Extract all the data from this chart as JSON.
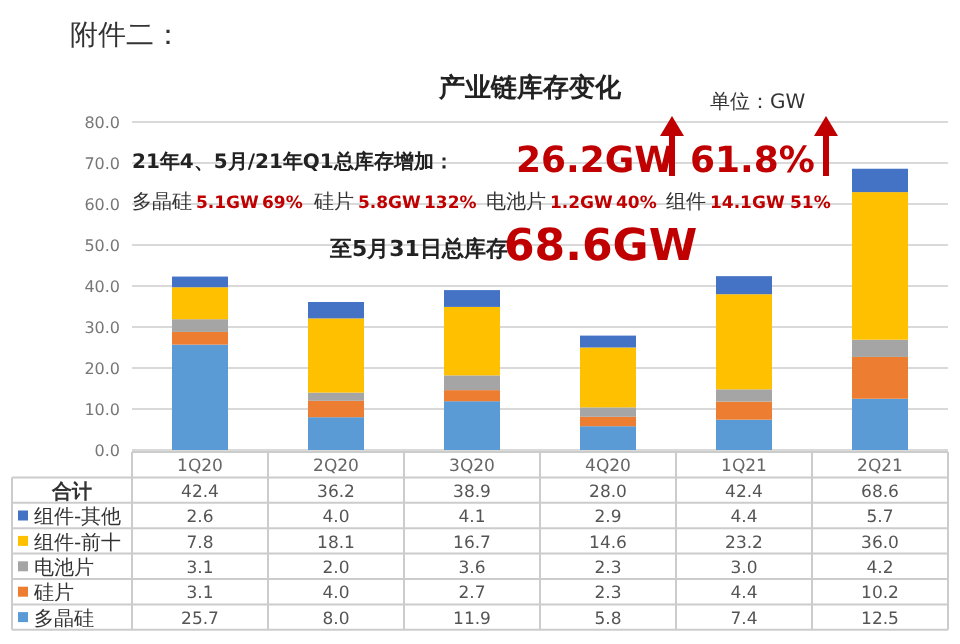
{
  "chart_data": {
    "type": "bar",
    "title": "产业链库存变化",
    "stacked": true,
    "grid": "y",
    "legend": "bottom",
    "categories": [
      "1Q20",
      "2Q20",
      "3Q20",
      "4Q20",
      "1Q21",
      "2Q21"
    ],
    "series": [
      {
        "name": "多晶硅",
        "color": "#5b9bd5",
        "values": [
          25.7,
          8.0,
          11.9,
          5.8,
          7.4,
          12.5
        ],
        "value_labels": [
          "25.7",
          "8.0",
          "11.9",
          "5.8",
          "7.4",
          "12.5"
        ]
      },
      {
        "name": "硅片",
        "color": "#ed7d31",
        "values": [
          3.1,
          4.0,
          2.7,
          2.3,
          4.4,
          10.2
        ],
        "value_labels": [
          "3.1",
          "4.0",
          "2.7",
          "2.3",
          "4.4",
          "10.2"
        ]
      },
      {
        "name": "电池片",
        "color": "#a5a5a5",
        "values": [
          3.1,
          2.0,
          3.6,
          2.3,
          3.0,
          4.2
        ],
        "value_labels": [
          "3.1",
          "2.0",
          "3.6",
          "2.3",
          "3.0",
          "4.2"
        ]
      },
      {
        "name": "组件-前十",
        "color": "#ffc000",
        "values": [
          7.8,
          18.1,
          16.7,
          14.6,
          23.2,
          36.0
        ],
        "value_labels": [
          "7.8",
          "18.1",
          "16.7",
          "14.6",
          "23.2",
          "36.0"
        ]
      },
      {
        "name": "组件-其他",
        "color": "#4472c4",
        "values": [
          2.6,
          4.0,
          4.1,
          2.9,
          4.4,
          5.7
        ],
        "value_labels": [
          "2.6",
          "4.0",
          "4.1",
          "2.9",
          "4.4",
          "5.7"
        ]
      }
    ],
    "totals": [
      "42.4",
      "36.2",
      "38.9",
      "28.0",
      "42.4",
      "68.6"
    ],
    "ylim": [
      0,
      80
    ],
    "yticks": [
      {
        "value": 0,
        "label": "0.0"
      },
      {
        "value": 10,
        "label": "10.0"
      },
      {
        "value": 20,
        "label": "20.0"
      },
      {
        "value": 30,
        "label": "30.0"
      },
      {
        "value": 40,
        "label": "40.0"
      },
      {
        "value": 50,
        "label": "50.0"
      },
      {
        "value": 60,
        "label": "60.0"
      },
      {
        "value": 70,
        "label": "70.0"
      },
      {
        "value": 80,
        "label": "80.0"
      }
    ],
    "annotations": [
      "附件二：",
      "单位：GW",
      "21年4、5月/21年Q1总库存增加：",
      "26.2GW",
      "61.8%",
      "多晶硅",
      "5.1GW",
      "69%",
      "硅片",
      "5.8GW",
      "132%",
      "电池片",
      "1.2GW",
      "40%",
      "组件",
      "14.1GW",
      "51%",
      "至5月31日总库存",
      "68.6GW",
      "合计"
    ]
  }
}
